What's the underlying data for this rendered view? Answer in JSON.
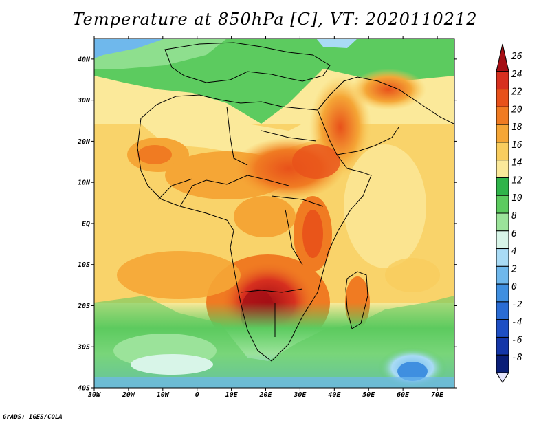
{
  "title": "Temperature at 850hPa [C], VT: 2020110212",
  "credit": "GrADS: IGES/COLA",
  "map": {
    "lon_labels": [
      "30W",
      "20W",
      "10W",
      "0",
      "10E",
      "20E",
      "30E",
      "40E",
      "50E",
      "60E",
      "70E"
    ],
    "lat_labels": [
      "40N",
      "30N",
      "20N",
      "10N",
      "EQ",
      "10S",
      "20S",
      "30S",
      "40S"
    ],
    "lon_range": [
      -30,
      75
    ],
    "lat_range": [
      -40,
      45
    ],
    "variable": "temperature_850hPa",
    "units": "C"
  },
  "colorbar": {
    "levels": [
      "26",
      "24",
      "22",
      "20",
      "18",
      "16",
      "14",
      "12",
      "10",
      "8",
      "6",
      "4",
      "2",
      "0",
      "-2",
      "-4",
      "-6",
      "-8"
    ],
    "colors": [
      "#a50f15",
      "#d7301f",
      "#e8511a",
      "#f07b22",
      "#f5a636",
      "#f9cd5e",
      "#fbe99a",
      "#2fb44a",
      "#5ccb5f",
      "#9be39a",
      "#d8f5e8",
      "#a9dbf5",
      "#6fb8ec",
      "#3f8fe0",
      "#2a6cd4",
      "#1e4fc4",
      "#1436a8",
      "#0a1e78"
    ]
  },
  "colors": {
    "hot": "#d73027",
    "warm": "#f7a940",
    "mild": "#fde79a",
    "cool": "#4dbf5a",
    "cold": "#9fd6f5",
    "coast": "#000000"
  }
}
